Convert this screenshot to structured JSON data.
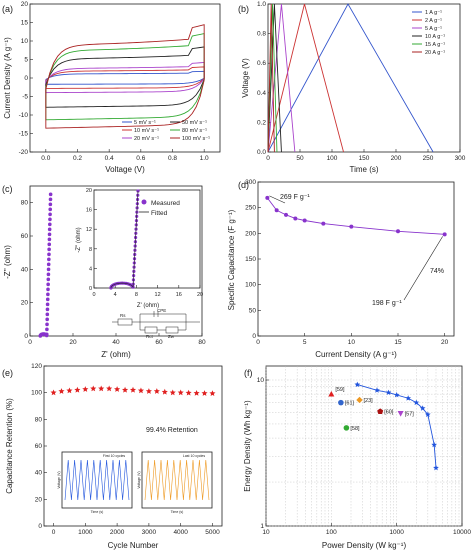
{
  "colors": {
    "5": "#3355cc",
    "10": "#cc3333",
    "20": "#aa44cc",
    "50": "#222222",
    "80": "#33aa33",
    "100": "#aa2222",
    "purple": "#8833cc",
    "star_red": "#e02020",
    "blue_line": "#2255dd",
    "orange_line": "#ee9922"
  },
  "chart_data": [
    {
      "panel": "a",
      "type": "line",
      "xlabel": "Voltage (V)",
      "ylabel": "Current Density (A g⁻¹)",
      "xlim": [
        -0.1,
        1.1
      ],
      "ylim": [
        -20,
        20
      ],
      "xticks": [
        "0.0",
        "0.2",
        "0.4",
        "0.6",
        "0.8",
        "1.0"
      ],
      "yticks": [
        "-20",
        "-15",
        "-10",
        "-5",
        "0",
        "5",
        "10",
        "15",
        "20"
      ],
      "legend": [
        "5 mV s⁻¹",
        "10 mV s⁻¹",
        "20 mV s⁻¹",
        "50 mV s⁻¹",
        "80 mV s⁻¹",
        "100 mV s⁻¹"
      ],
      "legend_position": "bottom-right",
      "series": [
        {
          "name": "5 mV s⁻¹",
          "color_key": "5",
          "amplitude": 1.5
        },
        {
          "name": "10 mV s⁻¹",
          "color_key": "10",
          "amplitude": 2.5
        },
        {
          "name": "20 mV s⁻¹",
          "color_key": "20",
          "amplitude": 3.5
        },
        {
          "name": "50 mV s⁻¹",
          "color_key": "50",
          "amplitude": 7
        },
        {
          "name": "80 mV s⁻¹",
          "color_key": "80",
          "amplitude": 10
        },
        {
          "name": "100 mV s⁻¹",
          "color_key": "100",
          "amplitude": 12
        }
      ]
    },
    {
      "panel": "b",
      "type": "line",
      "xlabel": "Time (s)",
      "ylabel": "Voltage (V)",
      "xlim": [
        0,
        300
      ],
      "ylim": [
        0,
        1.0
      ],
      "xticks": [
        "0",
        "50",
        "100",
        "150",
        "200",
        "250",
        "300"
      ],
      "yticks": [
        "0.0",
        "0.2",
        "0.4",
        "0.6",
        "0.8",
        "1.0"
      ],
      "legend": [
        "1 A g⁻¹",
        "2 A g⁻¹",
        "5 A g⁻¹",
        "10 A g⁻¹",
        "15 A g⁻¹",
        "20 A g⁻¹"
      ],
      "legend_position": "top-right",
      "series": [
        {
          "name": "1 A g⁻¹",
          "color_key": "5",
          "t_peak": 125,
          "t_end": 258
        },
        {
          "name": "2 A g⁻¹",
          "color_key": "10",
          "t_peak": 57,
          "t_end": 118
        },
        {
          "name": "5 A g⁻¹",
          "color_key": "20",
          "t_peak": 21,
          "t_end": 42
        },
        {
          "name": "10 A g⁻¹",
          "color_key": "50",
          "t_peak": 10,
          "t_end": 21
        },
        {
          "name": "15 A g⁻¹",
          "color_key": "80",
          "t_peak": 7,
          "t_end": 14
        },
        {
          "name": "20 A g⁻¹",
          "color_key": "100",
          "t_peak": 5,
          "t_end": 10
        }
      ]
    },
    {
      "panel": "c",
      "type": "scatter",
      "xlabel": "Z' (ohm)",
      "ylabel": "-Z'' (ohm)",
      "xlim": [
        0,
        80
      ],
      "ylim": [
        0,
        90
      ],
      "xticks": [
        "0",
        "20",
        "40",
        "60",
        "80"
      ],
      "yticks": [
        "0",
        "20",
        "40",
        "60",
        "80"
      ],
      "inset": {
        "xlabel": "Z' (ohm)",
        "ylabel": "-Z'' (ohm)",
        "xlim": [
          0,
          20
        ],
        "ylim": [
          0,
          20
        ],
        "xticks": [
          "0",
          "4",
          "8",
          "12",
          "16",
          "20"
        ],
        "yticks": [
          "0",
          "4",
          "8",
          "12",
          "16",
          "20"
        ],
        "legend": [
          "Measured",
          "Fitted"
        ],
        "circuit_labels": [
          "Rs",
          "CPE",
          "Rct",
          "Zw"
        ]
      }
    },
    {
      "panel": "d",
      "type": "line",
      "xlabel": "Current Density (A g⁻¹)",
      "ylabel": "Specific Capacitance (F g⁻¹)",
      "xlim": [
        0,
        21
      ],
      "ylim": [
        0,
        300
      ],
      "xticks": [
        "0",
        "5",
        "10",
        "15",
        "20"
      ],
      "yticks": [
        "0",
        "50",
        "100",
        "150",
        "200",
        "250",
        "300"
      ],
      "x": [
        1,
        2,
        3,
        4,
        5,
        7,
        10,
        15,
        20
      ],
      "y": [
        269,
        245,
        236,
        229,
        225,
        219,
        213,
        204,
        198
      ],
      "annotations": [
        "269 F g⁻¹",
        "198 F g⁻¹",
        "74%"
      ]
    },
    {
      "panel": "e",
      "type": "scatter",
      "xlabel": "Cycle Number",
      "ylabel": "Capacitance Retention (%)",
      "xlim": [
        -300,
        5300
      ],
      "ylim": [
        0,
        120
      ],
      "xticks": [
        "0",
        "1000",
        "2000",
        "3000",
        "4000",
        "5000"
      ],
      "yticks": [
        "0",
        "20",
        "40",
        "60",
        "80",
        "100",
        "120"
      ],
      "x": [
        0,
        250,
        500,
        750,
        1000,
        1250,
        1500,
        1750,
        2000,
        2250,
        2500,
        2750,
        3000,
        3250,
        3500,
        3750,
        4000,
        4250,
        4500,
        4750,
        5000
      ],
      "y": [
        100,
        101,
        101.5,
        102,
        102.5,
        103,
        103,
        103,
        102.5,
        102,
        102,
        101.5,
        101,
        101,
        100.5,
        100,
        100,
        99.8,
        99.6,
        99.5,
        99.4
      ],
      "annotation": "99.4% Retention",
      "insets": [
        {
          "legend": "First 10 cycles",
          "ylabel": "Voltage (V)",
          "xlabel": "Time (s)"
        },
        {
          "legend": "Last 10 cycles",
          "ylabel": "Voltage (V)",
          "xlabel": "Time (s)"
        }
      ]
    },
    {
      "panel": "f",
      "type": "scatter",
      "xlabel": "Power Density (W kg⁻¹)",
      "ylabel": "Energy Density (Wh kg⁻¹)",
      "xscale": "log",
      "yscale": "log",
      "xlim": [
        10,
        10000
      ],
      "ylim": [
        1,
        10
      ],
      "xticks": [
        "10",
        "100",
        "1000",
        "10000"
      ],
      "yticks": [
        "1",
        "10"
      ],
      "x": [
        250,
        500,
        750,
        1000,
        1500,
        2000,
        2500,
        3000,
        3750,
        4000
      ],
      "y": [
        9.3,
        8.5,
        8.2,
        7.9,
        7.5,
        7.0,
        6.4,
        5.8,
        3.6,
        2.5
      ],
      "references": [
        {
          "label": "[59]",
          "x": 100,
          "y": 8.0,
          "shape": "triangle",
          "color": "#e02020"
        },
        {
          "label": "[61]",
          "x": 140,
          "y": 7.0,
          "shape": "circle",
          "color": "#3366cc"
        },
        {
          "label": "[23]",
          "x": 270,
          "y": 7.3,
          "shape": "diamond",
          "color": "#ee9922"
        },
        {
          "label": "[60]",
          "x": 560,
          "y": 6.1,
          "shape": "pentagon",
          "color": "#aa1111"
        },
        {
          "label": "[57]",
          "x": 1150,
          "y": 5.9,
          "shape": "triangle-down",
          "color": "#aa44cc"
        },
        {
          "label": "[58]",
          "x": 170,
          "y": 4.7,
          "shape": "circle",
          "color": "#33aa33"
        }
      ]
    }
  ]
}
